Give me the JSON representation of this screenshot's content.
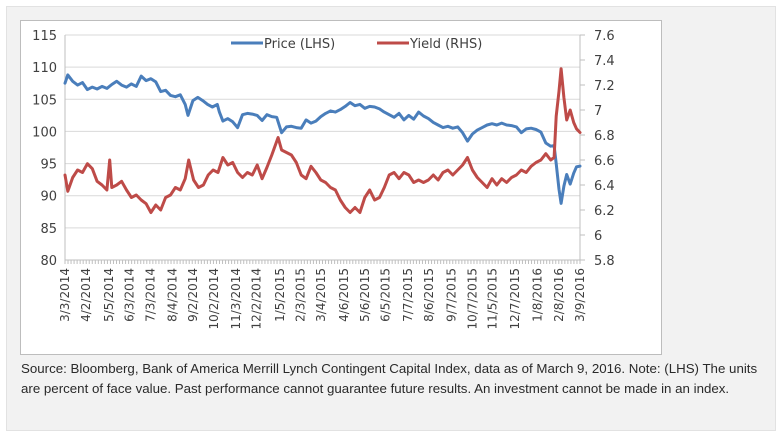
{
  "chart_data": {
    "type": "line",
    "title": "",
    "xlabel": "",
    "ylabel": "",
    "y2label": "",
    "grid": true,
    "legend_position": "top-center",
    "left_axis": {
      "range": [
        80,
        115
      ],
      "ticks": [
        "80",
        "85",
        "90",
        "95",
        "100",
        "105",
        "110",
        "115"
      ]
    },
    "right_axis": {
      "range": [
        5.8,
        7.6
      ],
      "ticks": [
        "5.8",
        "6",
        "6.2",
        "6.4",
        "6.6",
        "6.8",
        "7",
        "7.2",
        "7.4",
        "7.6"
      ]
    },
    "x_range": [
      "2014-03-03",
      "2016-03-09"
    ],
    "x_tick_labels": [
      "3/3/2014",
      "4/2/2014",
      "5/5/2014",
      "6/3/2014",
      "7/3/2014",
      "8/4/2014",
      "9/2/2014",
      "10/2/2014",
      "11/3/2014",
      "12/2/2014",
      "1/5/2015",
      "2/3/2015",
      "3/4/2015",
      "4/6/2015",
      "5/6/2015",
      "6/5/2015",
      "7/7/2015",
      "8/6/2015",
      "9/7/2015",
      "10/7/2015",
      "11/5/2015",
      "12/7/2015",
      "1/8/2016",
      "2/8/2016",
      "3/9/2016"
    ],
    "x_tick_dates": [
      "2014-03-03",
      "2014-04-02",
      "2014-05-05",
      "2014-06-03",
      "2014-07-03",
      "2014-08-04",
      "2014-09-02",
      "2014-10-02",
      "2014-11-03",
      "2014-12-02",
      "2015-01-05",
      "2015-02-03",
      "2015-03-04",
      "2015-04-06",
      "2015-05-06",
      "2015-06-05",
      "2015-07-07",
      "2015-08-06",
      "2015-09-07",
      "2015-10-07",
      "2015-11-05",
      "2015-12-07",
      "2016-01-08",
      "2016-02-08",
      "2016-03-09"
    ],
    "series": [
      {
        "name": "Price (LHS)",
        "axis": "left",
        "color": "#4a7ebb",
        "points": [
          [
            "2014-03-03",
            107.5
          ],
          [
            "2014-03-07",
            108.8
          ],
          [
            "2014-03-14",
            107.8
          ],
          [
            "2014-03-21",
            107.2
          ],
          [
            "2014-03-28",
            107.6
          ],
          [
            "2014-04-04",
            106.5
          ],
          [
            "2014-04-11",
            106.9
          ],
          [
            "2014-04-18",
            106.6
          ],
          [
            "2014-04-25",
            107.0
          ],
          [
            "2014-05-02",
            106.7
          ],
          [
            "2014-05-09",
            107.3
          ],
          [
            "2014-05-16",
            107.8
          ],
          [
            "2014-05-23",
            107.2
          ],
          [
            "2014-05-30",
            106.9
          ],
          [
            "2014-06-06",
            107.4
          ],
          [
            "2014-06-13",
            107.0
          ],
          [
            "2014-06-20",
            108.6
          ],
          [
            "2014-06-27",
            107.9
          ],
          [
            "2014-07-04",
            108.2
          ],
          [
            "2014-07-11",
            107.7
          ],
          [
            "2014-07-18",
            106.2
          ],
          [
            "2014-07-25",
            106.4
          ],
          [
            "2014-08-01",
            105.6
          ],
          [
            "2014-08-08",
            105.4
          ],
          [
            "2014-08-15",
            105.7
          ],
          [
            "2014-08-22",
            104.2
          ],
          [
            "2014-08-26",
            102.5
          ],
          [
            "2014-09-02",
            104.8
          ],
          [
            "2014-09-09",
            105.3
          ],
          [
            "2014-09-16",
            104.8
          ],
          [
            "2014-09-23",
            104.2
          ],
          [
            "2014-09-30",
            103.8
          ],
          [
            "2014-10-07",
            104.2
          ],
          [
            "2014-10-10",
            103.0
          ],
          [
            "2014-10-15",
            101.6
          ],
          [
            "2014-10-22",
            102.0
          ],
          [
            "2014-10-29",
            101.5
          ],
          [
            "2014-11-05",
            100.6
          ],
          [
            "2014-11-12",
            102.6
          ],
          [
            "2014-11-19",
            102.8
          ],
          [
            "2014-11-26",
            102.7
          ],
          [
            "2014-12-03",
            102.5
          ],
          [
            "2014-12-10",
            101.7
          ],
          [
            "2014-12-17",
            102.6
          ],
          [
            "2014-12-24",
            102.3
          ],
          [
            "2014-12-31",
            102.2
          ],
          [
            "2015-01-07",
            99.8
          ],
          [
            "2015-01-14",
            100.7
          ],
          [
            "2015-01-21",
            100.8
          ],
          [
            "2015-01-28",
            100.6
          ],
          [
            "2015-02-04",
            100.5
          ],
          [
            "2015-02-11",
            101.8
          ],
          [
            "2015-02-18",
            101.3
          ],
          [
            "2015-02-25",
            101.6
          ],
          [
            "2015-03-04",
            102.3
          ],
          [
            "2015-03-11",
            102.8
          ],
          [
            "2015-03-18",
            103.2
          ],
          [
            "2015-03-25",
            103.0
          ],
          [
            "2015-04-01",
            103.4
          ],
          [
            "2015-04-08",
            103.9
          ],
          [
            "2015-04-15",
            104.5
          ],
          [
            "2015-04-22",
            104.0
          ],
          [
            "2015-04-29",
            104.2
          ],
          [
            "2015-05-06",
            103.6
          ],
          [
            "2015-05-13",
            103.9
          ],
          [
            "2015-05-20",
            103.8
          ],
          [
            "2015-05-27",
            103.5
          ],
          [
            "2015-06-03",
            103.0
          ],
          [
            "2015-06-10",
            102.6
          ],
          [
            "2015-06-17",
            102.2
          ],
          [
            "2015-06-24",
            102.8
          ],
          [
            "2015-07-01",
            101.8
          ],
          [
            "2015-07-08",
            102.5
          ],
          [
            "2015-07-15",
            101.9
          ],
          [
            "2015-07-22",
            103.0
          ],
          [
            "2015-07-29",
            102.4
          ],
          [
            "2015-08-05",
            102.0
          ],
          [
            "2015-08-12",
            101.4
          ],
          [
            "2015-08-19",
            101.0
          ],
          [
            "2015-08-26",
            100.6
          ],
          [
            "2015-09-02",
            100.8
          ],
          [
            "2015-09-09",
            100.5
          ],
          [
            "2015-09-16",
            100.7
          ],
          [
            "2015-09-23",
            99.8
          ],
          [
            "2015-09-30",
            98.5
          ],
          [
            "2015-10-07",
            99.6
          ],
          [
            "2015-10-14",
            100.2
          ],
          [
            "2015-10-21",
            100.6
          ],
          [
            "2015-10-28",
            101.0
          ],
          [
            "2015-11-04",
            101.2
          ],
          [
            "2015-11-11",
            101.0
          ],
          [
            "2015-11-18",
            101.3
          ],
          [
            "2015-11-25",
            101.0
          ],
          [
            "2015-12-02",
            100.9
          ],
          [
            "2015-12-09",
            100.7
          ],
          [
            "2015-12-16",
            99.8
          ],
          [
            "2015-12-23",
            100.4
          ],
          [
            "2015-12-30",
            100.5
          ],
          [
            "2016-01-06",
            100.3
          ],
          [
            "2016-01-13",
            99.9
          ],
          [
            "2016-01-20",
            98.2
          ],
          [
            "2016-01-27",
            97.7
          ],
          [
            "2016-02-01",
            97.8
          ],
          [
            "2016-02-04",
            95.0
          ],
          [
            "2016-02-08",
            91.0
          ],
          [
            "2016-02-11",
            88.8
          ],
          [
            "2016-02-15",
            91.5
          ],
          [
            "2016-02-19",
            93.3
          ],
          [
            "2016-02-24",
            91.8
          ],
          [
            "2016-02-29",
            93.5
          ],
          [
            "2016-03-04",
            94.5
          ],
          [
            "2016-03-09",
            94.6
          ]
        ]
      },
      {
        "name": "Yield (RHS)",
        "axis": "right",
        "color": "#be4b48",
        "points": [
          [
            "2014-03-03",
            6.48
          ],
          [
            "2014-03-07",
            6.35
          ],
          [
            "2014-03-14",
            6.46
          ],
          [
            "2014-03-21",
            6.52
          ],
          [
            "2014-03-28",
            6.5
          ],
          [
            "2014-04-04",
            6.57
          ],
          [
            "2014-04-11",
            6.53
          ],
          [
            "2014-04-18",
            6.43
          ],
          [
            "2014-04-25",
            6.4
          ],
          [
            "2014-05-02",
            6.36
          ],
          [
            "2014-05-06",
            6.6
          ],
          [
            "2014-05-09",
            6.38
          ],
          [
            "2014-05-16",
            6.4
          ],
          [
            "2014-05-23",
            6.43
          ],
          [
            "2014-05-30",
            6.36
          ],
          [
            "2014-06-06",
            6.3
          ],
          [
            "2014-06-13",
            6.32
          ],
          [
            "2014-06-20",
            6.28
          ],
          [
            "2014-06-27",
            6.25
          ],
          [
            "2014-07-04",
            6.18
          ],
          [
            "2014-07-11",
            6.24
          ],
          [
            "2014-07-18",
            6.2
          ],
          [
            "2014-07-25",
            6.3
          ],
          [
            "2014-08-01",
            6.32
          ],
          [
            "2014-08-08",
            6.38
          ],
          [
            "2014-08-15",
            6.36
          ],
          [
            "2014-08-22",
            6.45
          ],
          [
            "2014-08-27",
            6.6
          ],
          [
            "2014-09-03",
            6.44
          ],
          [
            "2014-09-10",
            6.38
          ],
          [
            "2014-09-17",
            6.4
          ],
          [
            "2014-09-24",
            6.48
          ],
          [
            "2014-10-01",
            6.52
          ],
          [
            "2014-10-08",
            6.5
          ],
          [
            "2014-10-15",
            6.62
          ],
          [
            "2014-10-22",
            6.56
          ],
          [
            "2014-10-29",
            6.58
          ],
          [
            "2014-11-05",
            6.5
          ],
          [
            "2014-11-12",
            6.46
          ],
          [
            "2014-11-19",
            6.5
          ],
          [
            "2014-11-26",
            6.48
          ],
          [
            "2014-12-03",
            6.56
          ],
          [
            "2014-12-10",
            6.45
          ],
          [
            "2014-12-17",
            6.54
          ],
          [
            "2014-12-24",
            6.64
          ],
          [
            "2015-01-02",
            6.78
          ],
          [
            "2015-01-07",
            6.68
          ],
          [
            "2015-01-14",
            6.66
          ],
          [
            "2015-01-21",
            6.64
          ],
          [
            "2015-01-28",
            6.58
          ],
          [
            "2015-02-04",
            6.48
          ],
          [
            "2015-02-11",
            6.45
          ],
          [
            "2015-02-18",
            6.55
          ],
          [
            "2015-02-25",
            6.5
          ],
          [
            "2015-03-04",
            6.44
          ],
          [
            "2015-03-11",
            6.42
          ],
          [
            "2015-03-18",
            6.38
          ],
          [
            "2015-03-25",
            6.36
          ],
          [
            "2015-04-01",
            6.28
          ],
          [
            "2015-04-08",
            6.22
          ],
          [
            "2015-04-15",
            6.18
          ],
          [
            "2015-04-22",
            6.22
          ],
          [
            "2015-04-29",
            6.18
          ],
          [
            "2015-05-06",
            6.3
          ],
          [
            "2015-05-13",
            6.36
          ],
          [
            "2015-05-20",
            6.28
          ],
          [
            "2015-05-27",
            6.3
          ],
          [
            "2015-06-03",
            6.38
          ],
          [
            "2015-06-10",
            6.48
          ],
          [
            "2015-06-17",
            6.5
          ],
          [
            "2015-06-24",
            6.45
          ],
          [
            "2015-07-01",
            6.5
          ],
          [
            "2015-07-08",
            6.48
          ],
          [
            "2015-07-15",
            6.42
          ],
          [
            "2015-07-22",
            6.44
          ],
          [
            "2015-07-29",
            6.42
          ],
          [
            "2015-08-05",
            6.44
          ],
          [
            "2015-08-12",
            6.48
          ],
          [
            "2015-08-19",
            6.44
          ],
          [
            "2015-08-26",
            6.5
          ],
          [
            "2015-09-02",
            6.52
          ],
          [
            "2015-09-09",
            6.48
          ],
          [
            "2015-09-16",
            6.52
          ],
          [
            "2015-09-23",
            6.56
          ],
          [
            "2015-09-30",
            6.62
          ],
          [
            "2015-10-07",
            6.52
          ],
          [
            "2015-10-14",
            6.46
          ],
          [
            "2015-10-21",
            6.42
          ],
          [
            "2015-10-28",
            6.38
          ],
          [
            "2015-11-04",
            6.45
          ],
          [
            "2015-11-11",
            6.4
          ],
          [
            "2015-11-18",
            6.45
          ],
          [
            "2015-11-25",
            6.42
          ],
          [
            "2015-12-02",
            6.46
          ],
          [
            "2015-12-09",
            6.48
          ],
          [
            "2015-12-16",
            6.52
          ],
          [
            "2015-12-23",
            6.5
          ],
          [
            "2015-12-30",
            6.55
          ],
          [
            "2016-01-06",
            6.58
          ],
          [
            "2016-01-13",
            6.6
          ],
          [
            "2016-01-20",
            6.65
          ],
          [
            "2016-01-27",
            6.6
          ],
          [
            "2016-02-01",
            6.62
          ],
          [
            "2016-02-04",
            6.95
          ],
          [
            "2016-02-08",
            7.15
          ],
          [
            "2016-02-11",
            7.33
          ],
          [
            "2016-02-15",
            7.1
          ],
          [
            "2016-02-19",
            6.92
          ],
          [
            "2016-02-24",
            7.0
          ],
          [
            "2016-02-29",
            6.9
          ],
          [
            "2016-03-04",
            6.85
          ],
          [
            "2016-03-09",
            6.82
          ]
        ]
      }
    ]
  },
  "legend": {
    "price_label": "Price (LHS)",
    "yield_label": "Yield (RHS)"
  },
  "caption": "Source: Bloomberg, Bank of America Merrill Lynch Contingent Capital Index, data as of March 9, 2016. Note: (LHS) The units are percent of face value. Past performance cannot guarantee future results. An investment cannot be made in an index."
}
